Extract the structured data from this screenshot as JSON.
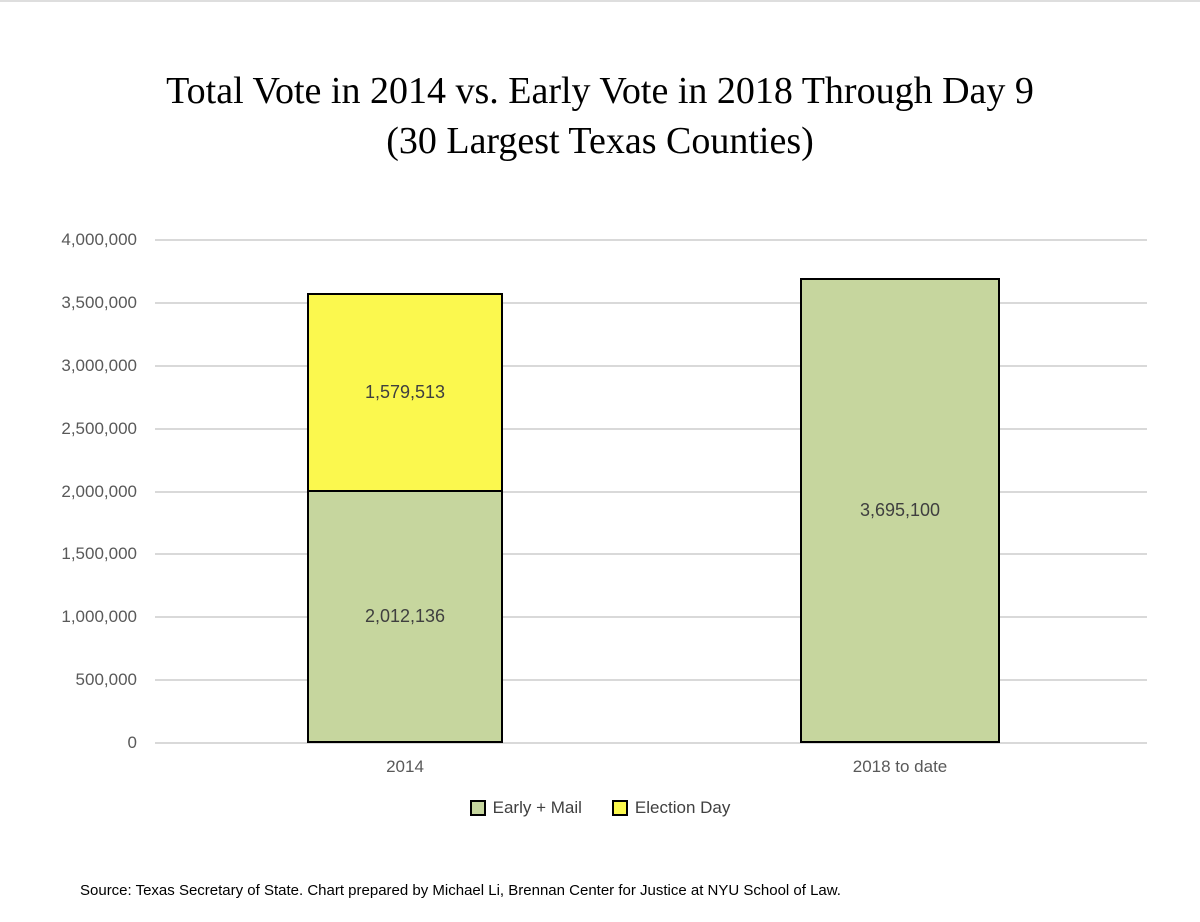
{
  "page": {
    "title": {
      "line1": "Total Vote in 2014 vs. Early Vote in 2018 Through Day 9",
      "line2": "(30 Largest Texas Counties)"
    },
    "source": "Source: Texas Secretary of State. Chart prepared by Michael Li, Brennan Center for Justice at NYU School of Law."
  },
  "chart_data": {
    "type": "bar",
    "stacked": true,
    "title": "Total Vote in 2014 vs. Early Vote in 2018 Through Day 9 (30 Largest Texas Counties)",
    "categories": [
      "2014",
      "2018 to date"
    ],
    "series": [
      {
        "name": "Early + Mail",
        "color": "#C6D69E",
        "values": [
          2012136,
          3695100
        ]
      },
      {
        "name": "Election Day",
        "color": "#FBF84E",
        "values": [
          1579513,
          0
        ]
      }
    ],
    "data_labels_visible": [
      "2,012,136",
      "1,579,513",
      "3,695,100"
    ],
    "xlabel": "",
    "ylabel": "",
    "ylim": [
      0,
      4000000
    ],
    "ytick_interval": 500000,
    "ytick_labels": [
      "0",
      "500,000",
      "1,000,000",
      "1,500,000",
      "2,000,000",
      "2,500,000",
      "3,000,000",
      "3,500,000",
      "4,000,000"
    ],
    "grid": true,
    "legend_position": "bottom",
    "styles": {
      "grid_color": "#D9D9D9",
      "axis_text_color": "#595959",
      "data_label_color": "#3F3F3F",
      "legend_text_color": "#404040",
      "bar_border_color": "#000000",
      "top_border_color": "#DEDEDE"
    }
  }
}
